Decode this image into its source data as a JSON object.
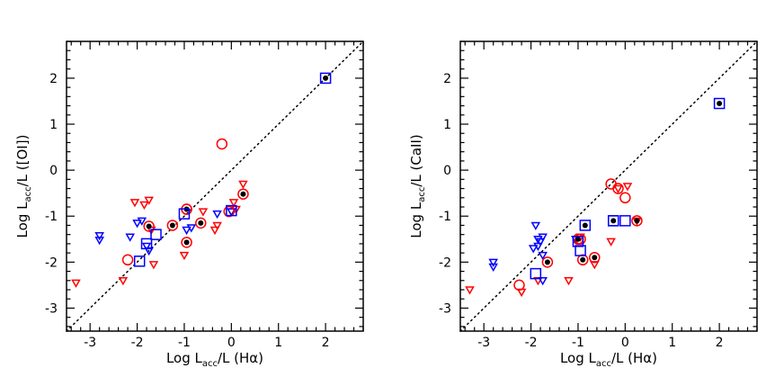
{
  "chart_data": [
    {
      "type": "scatter",
      "panel": "left",
      "xlabel": {
        "main": "Log L",
        "sub": "acc",
        "rest": "/L (Hα)"
      },
      "ylabel": {
        "main": "Log L",
        "sub": "acc",
        "rest": "/L ([OI])"
      },
      "xlim": [
        -3.5,
        2.8
      ],
      "ylim": [
        -3.5,
        2.8
      ],
      "xticks": [
        "-3",
        "-2",
        "-1",
        "0",
        "1",
        "2"
      ],
      "yticks": [
        "-3",
        "-2",
        "-1",
        "0",
        "1",
        "2"
      ],
      "tick_values": [
        -3,
        -2,
        -1,
        0,
        1,
        2
      ],
      "reference_line": "1:1 dotted",
      "series": [
        {
          "name": "red-triangles-down",
          "marker": "triangle-down",
          "color": "#ff0000",
          "points": [
            [
              -3.3,
              -2.45
            ],
            [
              -2.3,
              -2.4
            ],
            [
              -2.05,
              -0.7
            ],
            [
              -1.85,
              -0.75
            ],
            [
              -1.75,
              -0.65
            ],
            [
              -1.7,
              -1.3
            ],
            [
              -1.65,
              -2.05
            ],
            [
              -1.0,
              -1.85
            ],
            [
              -0.6,
              -0.9
            ],
            [
              -0.35,
              -1.3
            ],
            [
              -0.3,
              -1.2
            ],
            [
              0.0,
              -0.9
            ],
            [
              0.1,
              -0.85
            ],
            [
              0.05,
              -0.7
            ],
            [
              0.25,
              -0.3
            ]
          ]
        },
        {
          "name": "blue-triangles-down",
          "marker": "triangle-down",
          "color": "#0000ff",
          "points": [
            [
              -2.8,
              -1.42
            ],
            [
              -2.8,
              -1.52
            ],
            [
              -2.15,
              -1.45
            ],
            [
              -2.0,
              -1.15
            ],
            [
              -1.9,
              -1.1
            ],
            [
              -1.8,
              -1.65
            ],
            [
              -1.75,
              -1.75
            ],
            [
              -0.95,
              -1.3
            ],
            [
              -0.85,
              -1.25
            ],
            [
              -0.3,
              -0.95
            ],
            [
              0.0,
              -0.9
            ]
          ]
        },
        {
          "name": "red-circles",
          "marker": "circle",
          "color": "#ff0000",
          "points": [
            [
              -2.2,
              -1.95
            ],
            [
              -0.2,
              0.57
            ],
            [
              -0.05,
              -0.9
            ],
            [
              -0.95,
              -0.85
            ]
          ]
        },
        {
          "name": "red-circles-filled-dot",
          "marker": "circle-dot",
          "color": "#ff0000",
          "points": [
            [
              -1.75,
              -1.22
            ],
            [
              -1.25,
              -1.2
            ],
            [
              -0.95,
              -1.57
            ],
            [
              -0.65,
              -1.15
            ],
            [
              0.25,
              -0.52
            ],
            [
              -0.95,
              -0.85
            ]
          ]
        },
        {
          "name": "blue-squares",
          "marker": "square",
          "color": "#0000ff",
          "points": [
            [
              -1.95,
              -1.98
            ],
            [
              -1.8,
              -1.6
            ],
            [
              -1.6,
              -1.4
            ],
            [
              -1.0,
              -0.95
            ],
            [
              0.0,
              -0.88
            ]
          ]
        },
        {
          "name": "blue-squares-filled-dot",
          "marker": "square-dot",
          "color": "#0000ff",
          "points": [
            [
              2.0,
              2.0
            ]
          ]
        }
      ]
    },
    {
      "type": "scatter",
      "panel": "right",
      "xlabel": {
        "main": "Log L",
        "sub": "acc",
        "rest": "/L (Hα)"
      },
      "ylabel": {
        "main": "Log L",
        "sub": "acc",
        "rest": "/L (CaII)"
      },
      "xlim": [
        -3.5,
        2.8
      ],
      "ylim": [
        -3.5,
        2.8
      ],
      "xticks": [
        "-3",
        "-2",
        "-1",
        "0",
        "1",
        "2"
      ],
      "yticks": [
        "-3",
        "-2",
        "-1",
        "0",
        "1",
        "2"
      ],
      "tick_values": [
        -3,
        -2,
        -1,
        0,
        1,
        2
      ],
      "reference_line": "1:1 dotted",
      "series": [
        {
          "name": "red-triangles-down",
          "marker": "triangle-down",
          "color": "#ff0000",
          "points": [
            [
              -3.3,
              -2.6
            ],
            [
              -2.2,
              -2.65
            ],
            [
              -1.85,
              -2.4
            ],
            [
              -1.2,
              -2.4
            ],
            [
              -0.95,
              -1.45
            ],
            [
              -0.65,
              -2.05
            ],
            [
              -0.3,
              -1.55
            ],
            [
              -0.15,
              -0.4
            ],
            [
              0.05,
              -0.35
            ],
            [
              0.25,
              -1.1
            ]
          ]
        },
        {
          "name": "blue-triangles-down",
          "marker": "triangle-down",
          "color": "#0000ff",
          "points": [
            [
              -2.8,
              -2.0
            ],
            [
              -2.8,
              -2.1
            ],
            [
              -1.9,
              -1.2
            ],
            [
              -1.85,
              -1.5
            ],
            [
              -1.75,
              -1.45
            ],
            [
              -1.75,
              -1.85
            ],
            [
              -1.8,
              -1.55
            ],
            [
              -1.85,
              -1.65
            ],
            [
              -1.95,
              -1.7
            ],
            [
              -1.75,
              -2.4
            ],
            [
              -1.05,
              -1.5
            ]
          ]
        },
        {
          "name": "red-circles",
          "marker": "circle",
          "color": "#ff0000",
          "points": [
            [
              -2.25,
              -2.5
            ],
            [
              -0.3,
              -0.3
            ],
            [
              -0.15,
              -0.4
            ],
            [
              0.0,
              -0.6
            ],
            [
              -0.95,
              -1.5
            ]
          ]
        },
        {
          "name": "red-circles-filled-dot",
          "marker": "circle-dot",
          "color": "#ff0000",
          "points": [
            [
              -1.65,
              -2.0
            ],
            [
              -1.0,
              -1.5
            ],
            [
              -0.9,
              -1.95
            ],
            [
              -0.65,
              -1.9
            ],
            [
              0.25,
              -1.1
            ]
          ]
        },
        {
          "name": "blue-squares",
          "marker": "square",
          "color": "#0000ff",
          "points": [
            [
              -1.9,
              -2.25
            ],
            [
              -1.0,
              -1.55
            ],
            [
              -0.95,
              -1.75
            ],
            [
              -0.25,
              -1.1
            ],
            [
              0.0,
              -1.1
            ]
          ]
        },
        {
          "name": "blue-squares-filled-dot",
          "marker": "square-dot",
          "color": "#0000ff",
          "points": [
            [
              -0.85,
              -1.2
            ],
            [
              -0.25,
              -1.1
            ],
            [
              2.0,
              1.45
            ]
          ]
        }
      ]
    }
  ]
}
